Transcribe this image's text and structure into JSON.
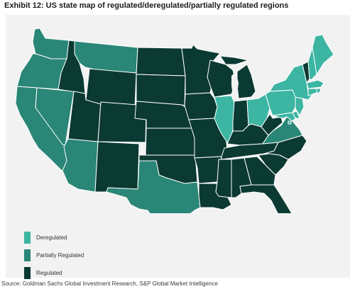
{
  "title": "Exhibit 12: US state map of regulated/deregulated/partially regulated regions",
  "source": "Source: Goldman Sachs Global Investment Research, S&P Global Market Intelligence",
  "colors": {
    "deregulated": "#3cb5a3",
    "partially_regulated": "#2a8676",
    "regulated": "#0b3a33",
    "background": "#f2f2f2"
  },
  "legend": [
    {
      "key": "deregulated",
      "label": "Deregulated"
    },
    {
      "key": "partially_regulated",
      "label": "Partially Regulated"
    },
    {
      "key": "regulated",
      "label": "Regulated"
    }
  ],
  "regions": {
    "WA": "partially_regulated",
    "OR": "partially_regulated",
    "CA": "partially_regulated",
    "NV": "partially_regulated",
    "AZ": "partially_regulated",
    "MT": "partially_regulated",
    "TX": "partially_regulated",
    "VA": "partially_regulated",
    "ME": "deregulated",
    "ID": "regulated",
    "UT": "regulated",
    "WY": "regulated",
    "CO": "regulated",
    "NM": "regulated",
    "ND": "regulated",
    "SD": "regulated",
    "NE": "regulated",
    "KS": "regulated",
    "OK": "regulated",
    "MN": "regulated",
    "IA": "regulated",
    "MO": "regulated",
    "AR": "regulated",
    "LA": "regulated",
    "WI": "regulated",
    "MI": "regulated",
    "IN": "regulated",
    "KY": "regulated",
    "TN": "regulated",
    "MS": "regulated",
    "AL": "regulated",
    "GA": "regulated",
    "FL": "regulated",
    "SC": "regulated",
    "NC": "regulated",
    "WV": "regulated",
    "VT": "regulated",
    "IL": "deregulated",
    "OH": "deregulated",
    "PA": "deregulated",
    "NY": "deregulated",
    "NJ": "deregulated",
    "DE": "deregulated",
    "MD": "deregulated",
    "CT": "deregulated",
    "RI": "deregulated",
    "MA": "deregulated",
    "NH": "deregulated",
    "DC": "deregulated"
  }
}
